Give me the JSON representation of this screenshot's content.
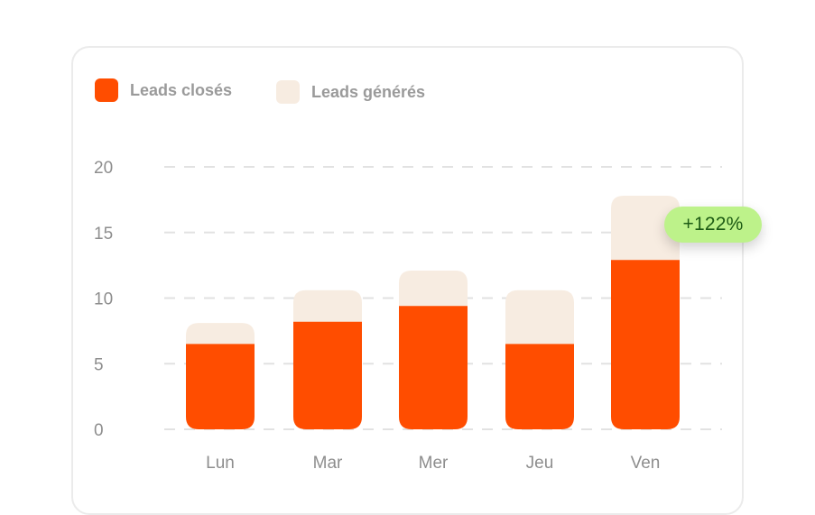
{
  "colors": {
    "closed": "#ff4d00",
    "generated": "#f7ece1",
    "grid": "#e2e2e2",
    "tick_text": "#8e8e8e",
    "legend_text": "#9a9a9a",
    "badge_bg": "#bdf28a",
    "badge_text": "#1d5b14"
  },
  "badge": {
    "text": "+122%"
  },
  "chart_data": {
    "type": "bar",
    "stacked": true,
    "categories": [
      "Lun",
      "Mar",
      "Mer",
      "Jeu",
      "Ven"
    ],
    "series": [
      {
        "name": "Leads closés",
        "values": [
          6.5,
          8.2,
          9.4,
          6.5,
          12.9
        ]
      },
      {
        "name": "Leads générés",
        "values": [
          1.6,
          2.4,
          2.7,
          4.1,
          4.9
        ]
      }
    ],
    "ylim": [
      0,
      20
    ],
    "yticks": [
      0,
      5,
      10,
      15,
      20
    ],
    "grid": true,
    "legend_position": "top-left"
  }
}
